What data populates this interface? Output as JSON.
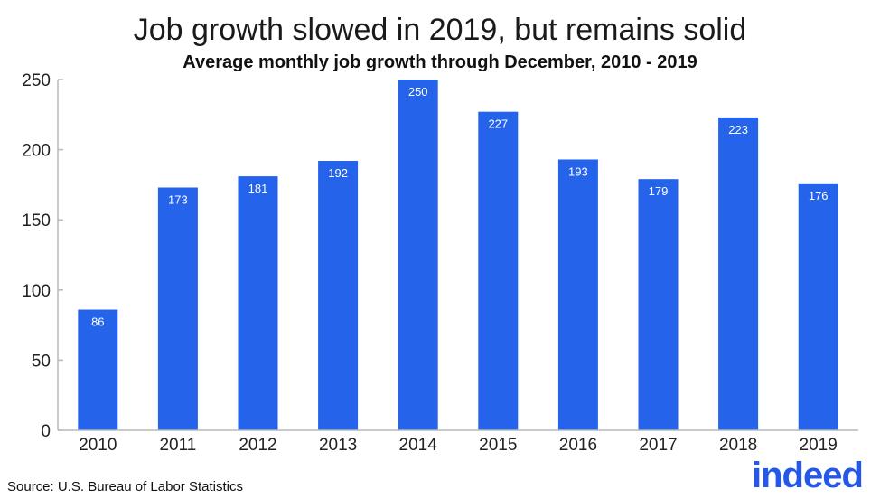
{
  "source": "Source: U.S. Bureau of Labor Statistics",
  "logo": {
    "text": "indeed",
    "color": "#2557e8"
  },
  "chart_data": {
    "type": "bar",
    "title": "Job growth slowed in 2019, but remains solid",
    "subtitle": "Average monthly job growth through December, 2010 - 2019",
    "categories": [
      "2010",
      "2011",
      "2012",
      "2013",
      "2014",
      "2015",
      "2016",
      "2017",
      "2018",
      "2019"
    ],
    "values": [
      86,
      173,
      181,
      192,
      250,
      227,
      193,
      179,
      223,
      176
    ],
    "data_labels": [
      "86",
      "173",
      "181",
      "192",
      "250",
      "227",
      "193",
      "179",
      "223",
      "176"
    ],
    "yticks": [
      "0",
      "50",
      "100",
      "150",
      "200",
      "250"
    ],
    "ylim": [
      0,
      250
    ],
    "xlabel": "",
    "ylabel": "",
    "grid": false,
    "legend": "none",
    "bar_color": "#2563eb",
    "axis_color": "#b8b8b8"
  }
}
